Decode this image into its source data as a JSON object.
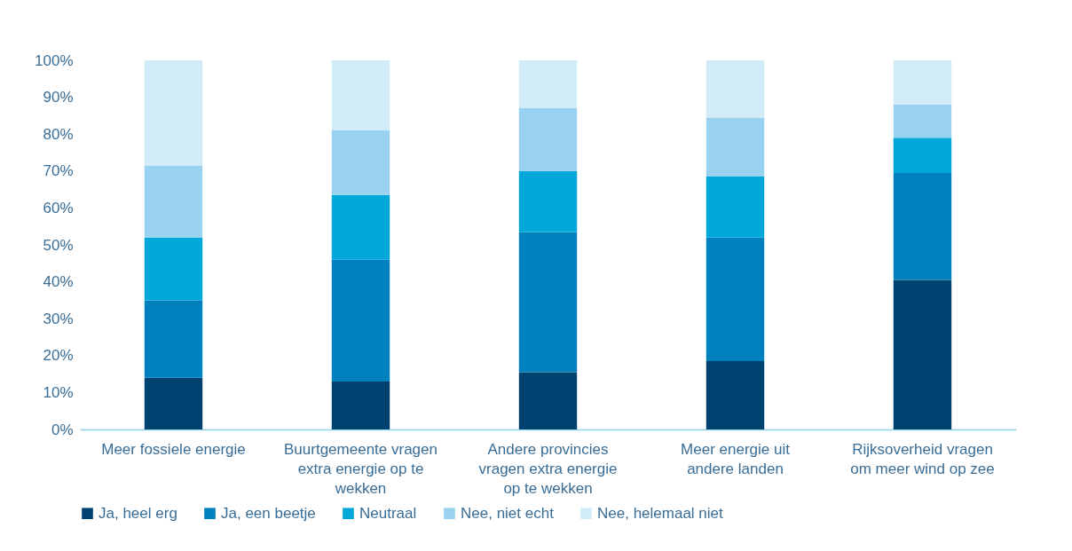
{
  "chart_data": {
    "type": "bar",
    "stacked": true,
    "categories": [
      "Meer fossiele energie",
      "Buurtgemeente vragen extra energie op te wekken",
      "Andere provincies vragen extra energie op te wekken",
      "Meer energie uit andere landen",
      "Rijksoverheid vragen om meer wind op zee"
    ],
    "series": [
      {
        "name": "Ja, heel erg",
        "color": "#00426f",
        "values": [
          14,
          13,
          15.5,
          18.5,
          40.5
        ]
      },
      {
        "name": "Ja, een beetje",
        "color": "#0080bd",
        "values": [
          21,
          33,
          38,
          33.5,
          29
        ]
      },
      {
        "name": "Neutraal",
        "color": "#00a7d9",
        "values": [
          17,
          17.5,
          16.5,
          16.5,
          9.5
        ]
      },
      {
        "name": "Nee, niet echt",
        "color": "#99d1f0",
        "values": [
          19.5,
          17.5,
          17,
          16,
          9
        ]
      },
      {
        "name": "Nee, helemaal niet",
        "color": "#d2ecf7",
        "values": [
          28.5,
          19,
          13,
          15.5,
          12
        ]
      }
    ],
    "ylim": [
      0,
      100
    ],
    "yticks": [
      {
        "value": 0,
        "label": "0%"
      },
      {
        "value": 10,
        "label": "10%"
      },
      {
        "value": 20,
        "label": "20%"
      },
      {
        "value": 30,
        "label": "30%"
      },
      {
        "value": 40,
        "label": "40%"
      },
      {
        "value": 50,
        "label": "50%"
      },
      {
        "value": 60,
        "label": "60%"
      },
      {
        "value": 70,
        "label": "70%"
      },
      {
        "value": 80,
        "label": "80%"
      },
      {
        "value": 90,
        "label": "90%"
      },
      {
        "value": 100,
        "label": "100%"
      }
    ],
    "grid": false,
    "legend": "bottom"
  }
}
